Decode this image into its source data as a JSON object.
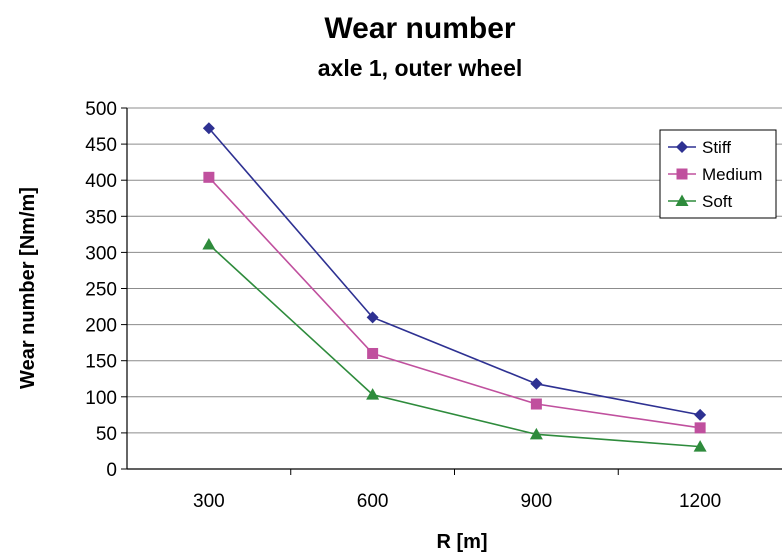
{
  "chart_data": {
    "type": "line",
    "title": "Wear number",
    "subtitle": "axle 1, outer wheel",
    "xlabel": "R [m]",
    "ylabel": "Wear number [Nm/m]",
    "categories": [
      "300",
      "600",
      "900",
      "1200"
    ],
    "ylim": [
      0,
      500
    ],
    "yticks": [
      "0",
      "50",
      "100",
      "150",
      "200",
      "250",
      "300",
      "350",
      "400",
      "450",
      "500"
    ],
    "grid": true,
    "legend": "top-right",
    "series": [
      {
        "name": "Stiff",
        "color": "#2e3192",
        "marker": "diamond",
        "values": [
          472,
          210,
          118,
          75
        ]
      },
      {
        "name": "Medium",
        "color": "#c0509e",
        "marker": "square",
        "values": [
          404,
          160,
          90,
          57
        ]
      },
      {
        "name": "Soft",
        "color": "#2e8b3c",
        "marker": "triangle",
        "values": [
          311,
          103,
          48,
          31
        ]
      }
    ]
  }
}
